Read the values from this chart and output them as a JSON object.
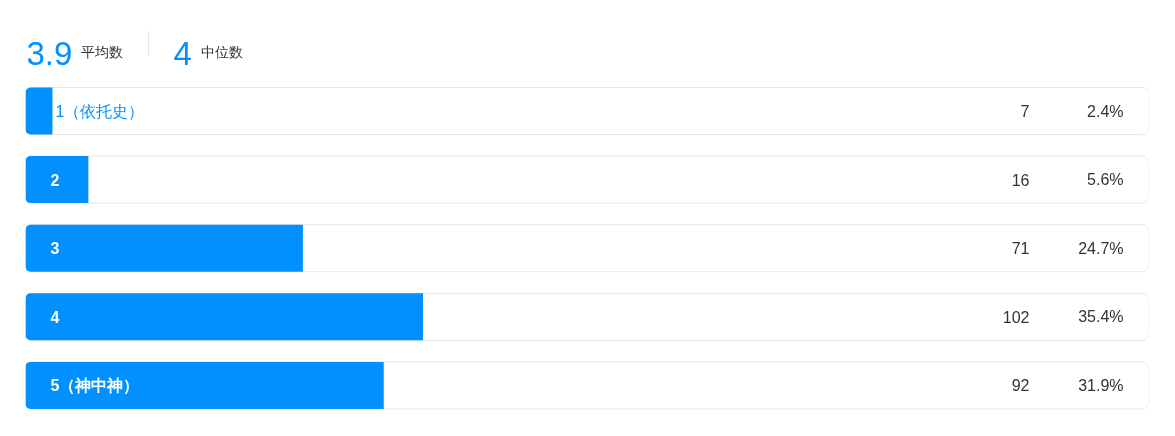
{
  "chart_data": {
    "type": "bar",
    "orientation": "horizontal",
    "categories": [
      "1（依托史）",
      "2",
      "3",
      "4",
      "5（神中神）"
    ],
    "values": [
      2.4,
      5.6,
      24.7,
      35.4,
      31.9
    ],
    "color": "#0090ff",
    "value_labels": [
      "2.4%",
      "5.6%",
      "24.7%",
      "35.4%",
      "31.9%"
    ],
    "annotations": [
      "3.9 平均数",
      "4 中位数",
      "7",
      "16",
      "71",
      "102",
      "92"
    ]
  }
}
